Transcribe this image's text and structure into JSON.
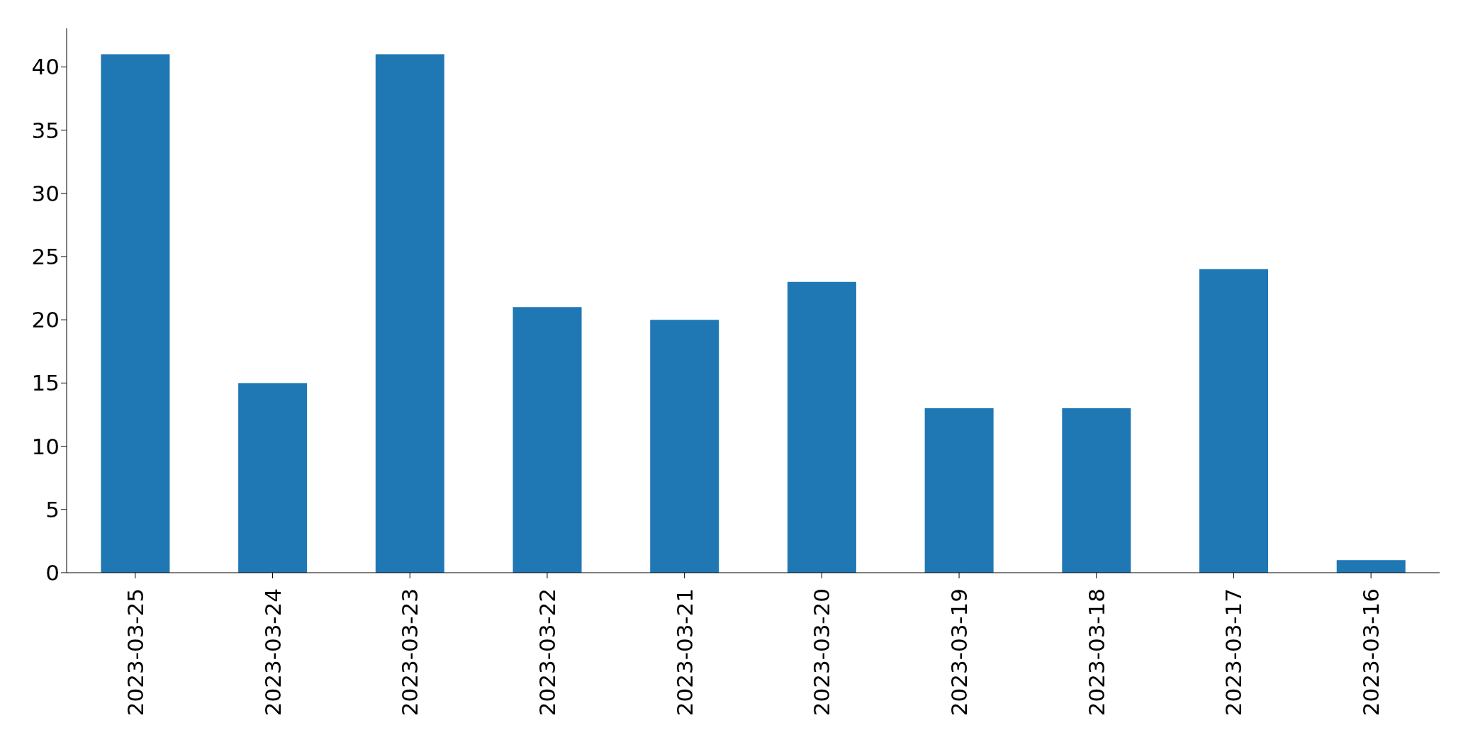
{
  "chart_data": {
    "type": "bar",
    "categories": [
      "2023-03-25",
      "2023-03-24",
      "2023-03-23",
      "2023-03-22",
      "2023-03-21",
      "2023-03-20",
      "2023-03-19",
      "2023-03-18",
      "2023-03-17",
      "2023-03-16"
    ],
    "values": [
      41,
      15,
      41,
      21,
      20,
      23,
      13,
      13,
      24,
      1
    ],
    "color": "#1f77b4",
    "ylim": [
      0,
      43.05
    ],
    "yticks": [
      0,
      5,
      10,
      15,
      20,
      25,
      30,
      35,
      40
    ],
    "grid": false,
    "legend": false
  }
}
